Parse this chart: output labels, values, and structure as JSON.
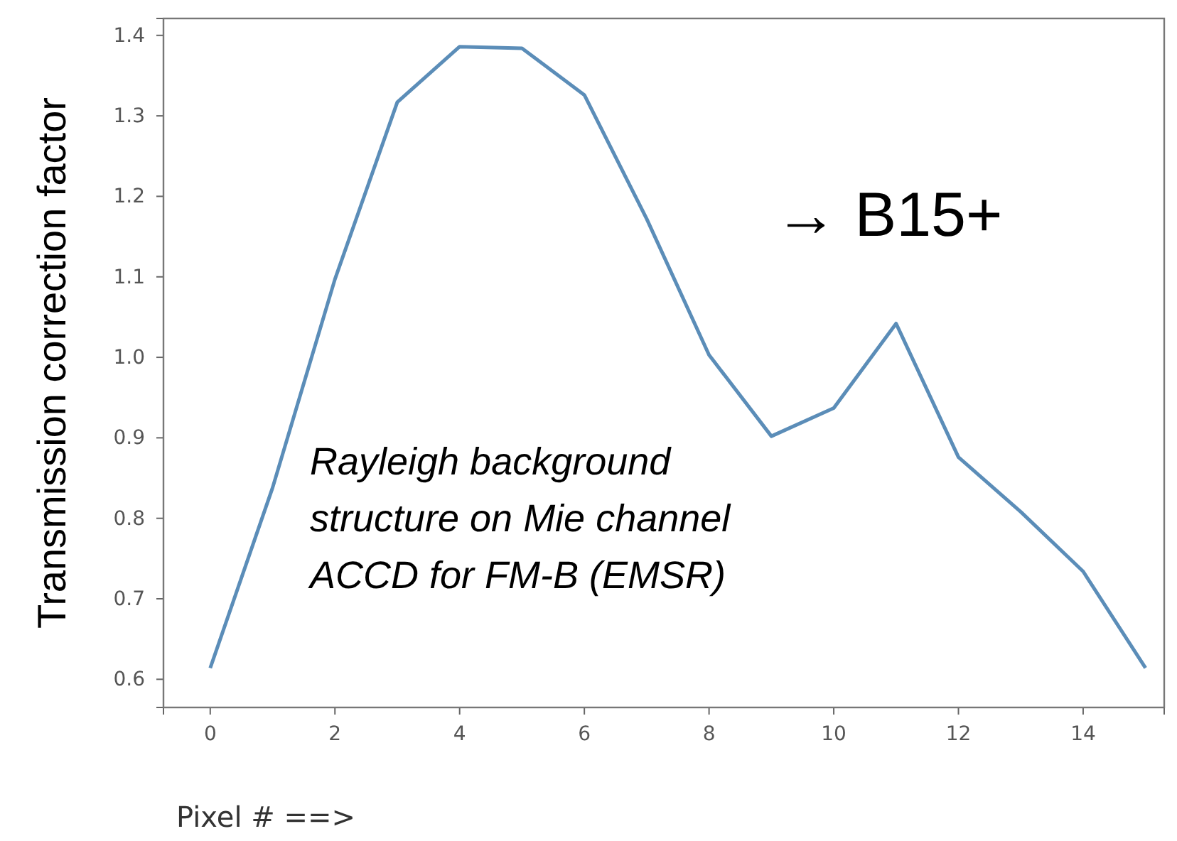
{
  "chart_data": {
    "type": "line",
    "xlabel": "Pixel # ==>",
    "ylabel": "Transmission correction factor",
    "x": [
      0,
      1,
      2,
      3,
      4,
      5,
      6,
      7,
      8,
      9,
      10,
      11,
      12,
      13,
      14,
      15
    ],
    "series": [
      {
        "color": "#5b8db8",
        "values": [
          0.614,
          0.838,
          1.097,
          1.317,
          1.386,
          1.384,
          1.326,
          1.172,
          1.003,
          0.902,
          0.937,
          1.042,
          0.876,
          0.808,
          0.734,
          0.614
        ]
      }
    ],
    "xlim": [
      -0.75,
      15.3
    ],
    "ylim": [
      0.565,
      1.421
    ],
    "xticks": [
      0,
      2,
      4,
      6,
      8,
      10,
      12,
      14
    ],
    "yticks": [
      0.6,
      0.7,
      0.8,
      0.9,
      {
        "value": 1,
        "label": "1.0"
      },
      1.1,
      1.2,
      1.3,
      1.4
    ],
    "annotations": [
      "→ B15+",
      "Rayleigh background structure on Mie channel ACCD for FM-B (EMSR)"
    ],
    "grid": false,
    "marker": "none",
    "line_style": "solid"
  }
}
